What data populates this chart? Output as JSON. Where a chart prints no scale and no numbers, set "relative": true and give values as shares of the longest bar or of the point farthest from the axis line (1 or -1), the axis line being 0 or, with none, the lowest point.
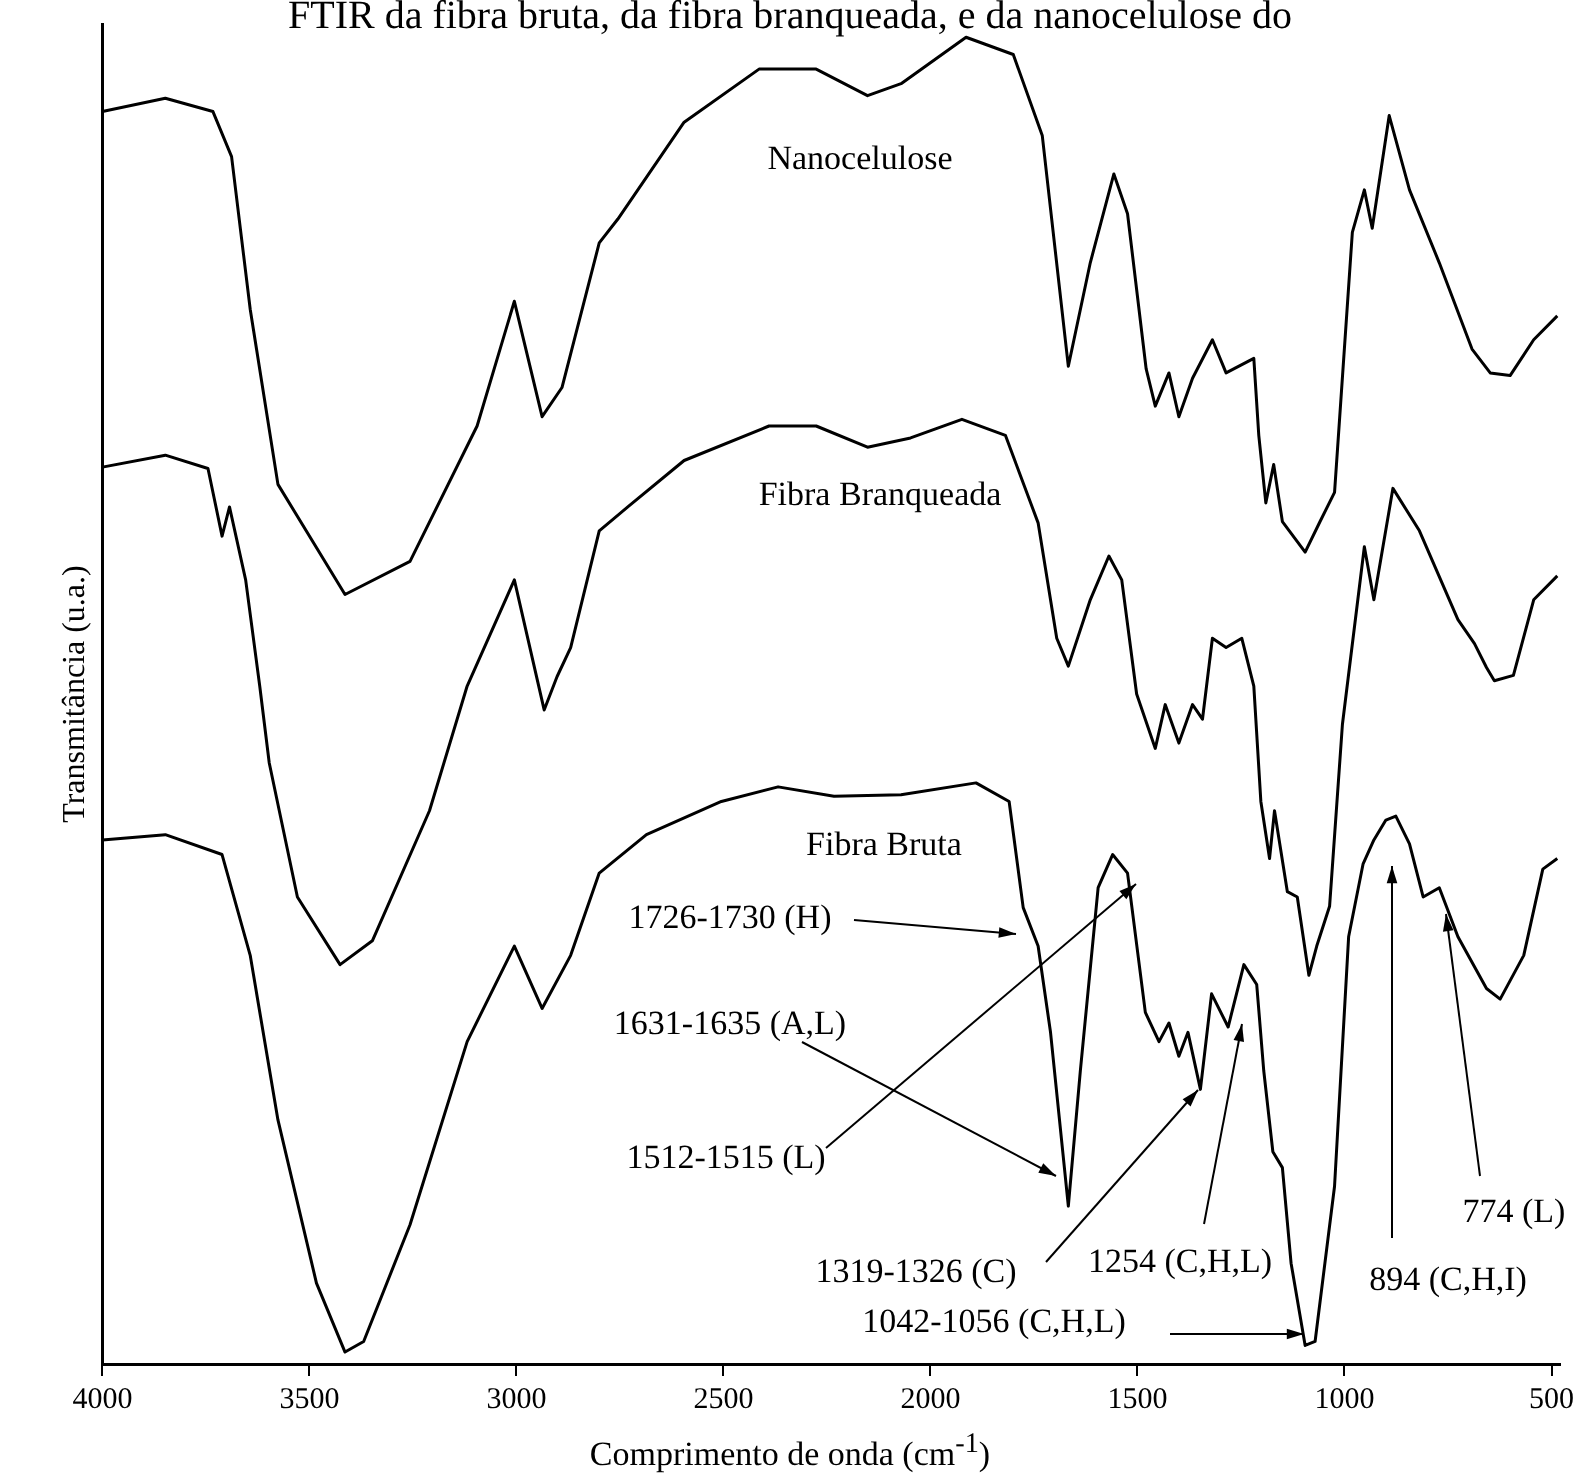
{
  "chart_data": {
    "type": "line",
    "relative": true,
    "title": "FTIR da fibra bruta, da fibra branqueada, e da nanocelulose do",
    "xlabel": "Comprimento de onda (cm$^{-1}$)",
    "ylabel": "Transmitância (u.a.)",
    "xlim": [
      4000,
      480
    ],
    "xticks": [
      4000,
      3500,
      3000,
      2500,
      2000,
      1500,
      1000,
      500
    ],
    "legend": false,
    "grid": false,
    "marker": "none",
    "line_style": "solid",
    "series": [
      {
        "name": "Nanocelulose",
        "color": "#000000",
        "x": [
          4000,
          3848,
          3733,
          3688,
          3643,
          3576,
          3414,
          3257,
          3095,
          3005,
          2938,
          2890,
          2800,
          2755,
          2595,
          2414,
          2276,
          2152,
          2071,
          1914,
          1800,
          1730,
          1667,
          1614,
          1557,
          1524,
          1479,
          1457,
          1424,
          1400,
          1367,
          1319,
          1286,
          1219,
          1207,
          1190,
          1171,
          1150,
          1095,
          1059,
          1024,
          981,
          952,
          933,
          892,
          843,
          771,
          692,
          648,
          600,
          543,
          486
        ],
        "values": [
          0.944,
          0.954,
          0.944,
          0.91,
          0.795,
          0.663,
          0.58,
          0.605,
          0.707,
          0.801,
          0.714,
          0.736,
          0.845,
          0.863,
          0.936,
          0.976,
          0.976,
          0.956,
          0.965,
          1,
          0.987,
          0.926,
          0.752,
          0.83,
          0.897,
          0.867,
          0.75,
          0.722,
          0.747,
          0.714,
          0.743,
          0.772,
          0.747,
          0.758,
          0.7,
          0.649,
          0.678,
          0.635,
          0.612,
          0.635,
          0.657,
          0.853,
          0.885,
          0.856,
          0.941,
          0.885,
          0.83,
          0.765,
          0.747,
          0.745,
          0.772,
          0.79
        ]
      },
      {
        "name": "Fibra Branqueada",
        "color": "#000000",
        "x": [
          4000,
          3848,
          3745,
          3711,
          3693,
          3654,
          3620,
          3597,
          3529,
          3426,
          3348,
          3210,
          3119,
          3005,
          2933,
          2902,
          2869,
          2800,
          2731,
          2595,
          2390,
          2276,
          2152,
          2048,
          1924,
          1819,
          1740,
          1695,
          1667,
          1614,
          1569,
          1538,
          1502,
          1457,
          1433,
          1400,
          1367,
          1343,
          1319,
          1286,
          1248,
          1219,
          1202,
          1181,
          1169,
          1138,
          1114,
          1086,
          1067,
          1036,
          1005,
          952,
          929,
          883,
          819,
          726,
          686,
          657,
          638,
          592,
          543,
          486
        ],
        "values": [
          0.676,
          0.685,
          0.675,
          0.624,
          0.646,
          0.591,
          0.511,
          0.453,
          0.352,
          0.301,
          0.319,
          0.417,
          0.511,
          0.591,
          0.493,
          0.518,
          0.54,
          0.628,
          0.646,
          0.681,
          0.707,
          0.707,
          0.691,
          0.698,
          0.712,
          0.7,
          0.634,
          0.547,
          0.526,
          0.576,
          0.609,
          0.591,
          0.505,
          0.464,
          0.497,
          0.468,
          0.497,
          0.486,
          0.547,
          0.54,
          0.547,
          0.511,
          0.424,
          0.381,
          0.417,
          0.356,
          0.352,
          0.293,
          0.315,
          0.345,
          0.482,
          0.616,
          0.576,
          0.66,
          0.628,
          0.561,
          0.543,
          0.525,
          0.515,
          0.519,
          0.576,
          0.594
        ]
      },
      {
        "name": "Fibra Bruta",
        "color": "#000000",
        "x": [
          4000,
          3848,
          3711,
          3643,
          3576,
          3483,
          3414,
          3369,
          3257,
          3119,
          3005,
          2938,
          2869,
          2800,
          2686,
          2505,
          2368,
          2233,
          2071,
          1890,
          1810,
          1776,
          1740,
          1710,
          1667,
          1638,
          1595,
          1560,
          1524,
          1481,
          1448,
          1424,
          1400,
          1378,
          1348,
          1321,
          1281,
          1243,
          1212,
          1195,
          1173,
          1150,
          1129,
          1095,
          1071,
          1024,
          990,
          955,
          929,
          900,
          876,
          843,
          810,
          771,
          726,
          657,
          624,
          567,
          521,
          486
        ],
        "values": [
          0.395,
          0.399,
          0.384,
          0.308,
          0.184,
          0.061,
          0.009,
          0.017,
          0.105,
          0.243,
          0.315,
          0.268,
          0.308,
          0.37,
          0.399,
          0.424,
          0.435,
          0.428,
          0.429,
          0.438,
          0.424,
          0.344,
          0.315,
          0.25,
          0.119,
          0.221,
          0.359,
          0.384,
          0.37,
          0.265,
          0.243,
          0.257,
          0.232,
          0.25,
          0.207,
          0.279,
          0.254,
          0.301,
          0.286,
          0.221,
          0.16,
          0.148,
          0.076,
          0.014,
          0.017,
          0.134,
          0.322,
          0.377,
          0.395,
          0.41,
          0.413,
          0.392,
          0.352,
          0.359,
          0.322,
          0.283,
          0.275,
          0.308,
          0.373,
          0.381
        ]
      }
    ],
    "annotations": [
      "1726-1730 (H)",
      "1631-1635 (A,L)",
      "1512-1515 (L)",
      "1319-1326 (C)",
      "1254 (C,H,L)",
      "1042-1056 (C,H,L)",
      "894 (C,H,I)",
      "774 (L)"
    ]
  }
}
